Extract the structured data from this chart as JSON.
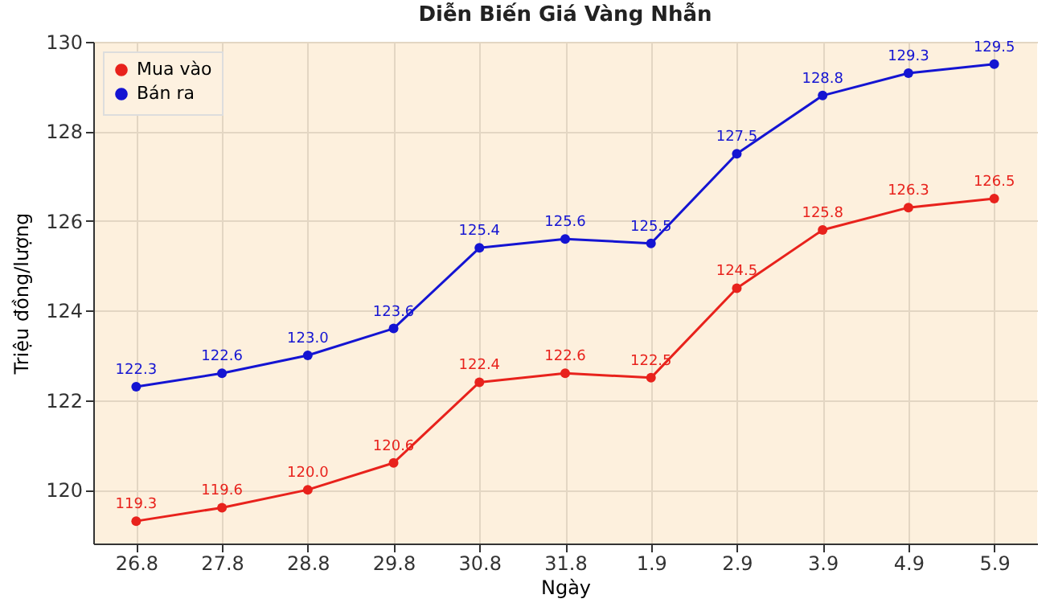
{
  "chart_data": {
    "type": "line",
    "title": "Diễn Biến Giá Vàng Nhẫn",
    "xlabel": "Ngày",
    "ylabel": "Triệu đồng/lượng",
    "categories": [
      "26.8",
      "27.8",
      "28.8",
      "29.8",
      "30.8",
      "31.8",
      "1.9",
      "2.9",
      "3.9",
      "4.9",
      "5.9"
    ],
    "series": [
      {
        "name": "Mua vào",
        "color": "#e8221c",
        "values": [
          119.3,
          119.6,
          120.0,
          120.6,
          122.4,
          122.6,
          122.5,
          124.5,
          125.8,
          126.3,
          126.5
        ],
        "value_labels": [
          "119.3",
          "119.6",
          "120.0",
          "120.6",
          "122.4",
          "122.6",
          "122.5",
          "124.5",
          "125.8",
          "126.3",
          "126.5"
        ]
      },
      {
        "name": "Bán ra",
        "color": "#1414d2",
        "values": [
          122.3,
          122.6,
          123.0,
          123.6,
          125.4,
          125.6,
          125.5,
          127.5,
          128.8,
          129.3,
          129.5
        ],
        "value_labels": [
          "122.3",
          "122.6",
          "123.0",
          "123.6",
          "125.4",
          "125.6",
          "125.5",
          "127.5",
          "128.8",
          "129.3",
          "129.5"
        ]
      }
    ],
    "ylim": [
      118.8,
      130
    ],
    "yticks": [
      120,
      122,
      124,
      126,
      128,
      130
    ],
    "grid": true,
    "legend": "top left",
    "marker": "circle",
    "line_style": "solid"
  }
}
